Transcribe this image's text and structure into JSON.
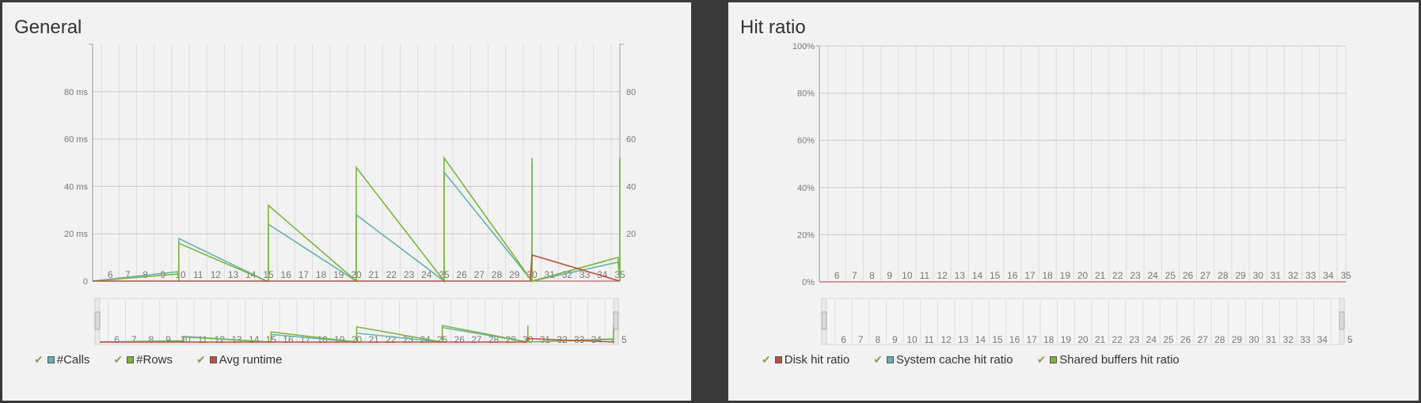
{
  "panels": {
    "general": {
      "title": "General"
    },
    "hit_ratio": {
      "title": "Hit ratio"
    }
  },
  "chart_data": [
    {
      "type": "line",
      "title": "General",
      "x_ticks": [
        6,
        7,
        8,
        9,
        10,
        11,
        12,
        13,
        14,
        15,
        16,
        17,
        18,
        19,
        20,
        21,
        22,
        23,
        24,
        25,
        26,
        27,
        28,
        29,
        30,
        31,
        32,
        33,
        34,
        35
      ],
      "y_left_ticks": [
        "0",
        "20 ms",
        "40 ms",
        "60 ms",
        "80 ms"
      ],
      "y_right_ticks": [
        "20",
        "40",
        "60",
        "80"
      ],
      "ylim_left": [
        0,
        100
      ],
      "ylim_right": [
        0,
        100
      ],
      "xlim": [
        5,
        35
      ],
      "grid": true,
      "legend_position": "bottom-left",
      "series": [
        {
          "name": "#Calls",
          "color": "#5fb4b0",
          "points": [
            [
              5,
              0
            ],
            [
              9.9,
              4
            ],
            [
              9.9,
              0
            ],
            [
              9.9,
              18
            ],
            [
              14.9,
              0
            ],
            [
              15,
              0
            ],
            [
              15,
              24
            ],
            [
              20,
              0
            ],
            [
              20,
              28
            ],
            [
              25,
              0
            ],
            [
              25,
              46
            ],
            [
              30,
              0
            ],
            [
              30,
              50
            ],
            [
              30,
              0
            ],
            [
              34.9,
              8
            ],
            [
              35,
              0
            ],
            [
              35,
              52
            ]
          ]
        },
        {
          "name": "#Rows",
          "color": "#7ab733",
          "points": [
            [
              5,
              0
            ],
            [
              9.9,
              3
            ],
            [
              9.9,
              0
            ],
            [
              9.9,
              16
            ],
            [
              14.9,
              0
            ],
            [
              15,
              0
            ],
            [
              15,
              32
            ],
            [
              20,
              0
            ],
            [
              20,
              48
            ],
            [
              25,
              0
            ],
            [
              25,
              52
            ],
            [
              30,
              0
            ],
            [
              30,
              52
            ],
            [
              30,
              0
            ],
            [
              34.9,
              10
            ],
            [
              35,
              0
            ],
            [
              35,
              52
            ]
          ]
        },
        {
          "name": "Avg runtime",
          "color": "#c84a35",
          "points": [
            [
              5,
              0
            ],
            [
              29.9,
              0
            ],
            [
              30,
              11
            ],
            [
              35,
              0
            ]
          ]
        }
      ]
    },
    {
      "type": "line",
      "title": "Hit ratio",
      "x_ticks": [
        6,
        7,
        8,
        9,
        10,
        11,
        12,
        13,
        14,
        15,
        16,
        17,
        18,
        19,
        20,
        21,
        22,
        23,
        24,
        25,
        26,
        27,
        28,
        29,
        30,
        31,
        32,
        33,
        34,
        35
      ],
      "y_ticks": [
        "0%",
        "20%",
        "40%",
        "60%",
        "80%",
        "100%"
      ],
      "ylim": [
        0,
        100
      ],
      "xlim": [
        5,
        35
      ],
      "grid": true,
      "legend_position": "bottom-left",
      "series": [
        {
          "name": "Disk hit ratio",
          "color": "#c84a35",
          "points": []
        },
        {
          "name": "System cache hit ratio",
          "color": "#5fb4b0",
          "points": []
        },
        {
          "name": "Shared buffers hit ratio",
          "color": "#7ab733",
          "points": []
        }
      ]
    }
  ],
  "legends": {
    "general": [
      {
        "label": "#Calls",
        "color": "#5fb4b0"
      },
      {
        "label": "#Rows",
        "color": "#7ab733"
      },
      {
        "label": "Avg runtime",
        "color": "#c84a35"
      }
    ],
    "hit_ratio": [
      {
        "label": "Disk hit ratio",
        "color": "#c84a35"
      },
      {
        "label": "System cache hit ratio",
        "color": "#5fb4b0"
      },
      {
        "label": "Shared buffers hit ratio",
        "color": "#7ab733"
      }
    ]
  },
  "navigator_last_tick": "5"
}
